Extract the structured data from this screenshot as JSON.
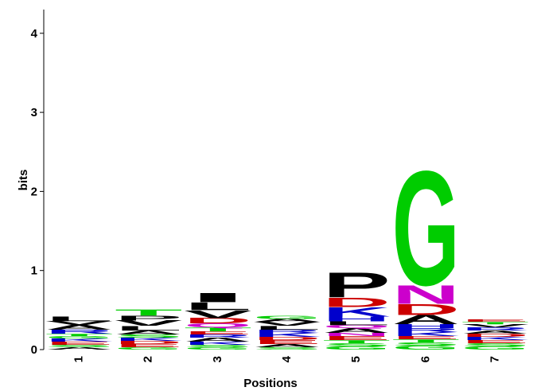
{
  "chart_data": {
    "type": "logo",
    "xlabel": "Positions",
    "ylabel": "bits",
    "categories": [
      "1",
      "2",
      "3",
      "4",
      "5",
      "6",
      "7"
    ],
    "ylim": [
      0,
      4.3
    ],
    "yticks": [
      0,
      1,
      2,
      3,
      4
    ],
    "stacks": [
      [
        {
          "letter": "A",
          "color": "#000000",
          "value": 0.03
        },
        {
          "letter": "S",
          "color": "#00cc00",
          "value": 0.03
        },
        {
          "letter": "E",
          "color": "#cc0000",
          "value": 0.04
        },
        {
          "letter": "K",
          "color": "#0000cc",
          "value": 0.04
        },
        {
          "letter": "G",
          "color": "#00cc00",
          "value": 0.03
        },
        {
          "letter": "T",
          "color": "#00cc00",
          "value": 0.03
        },
        {
          "letter": "R",
          "color": "#0000cc",
          "value": 0.05
        },
        {
          "letter": "A",
          "color": "#000000",
          "value": 0.06
        },
        {
          "letter": "V",
          "color": "#000000",
          "value": 0.05
        },
        {
          "letter": "L",
          "color": "#000000",
          "value": 0.06
        }
      ],
      [
        {
          "letter": "G",
          "color": "#00cc00",
          "value": 0.03
        },
        {
          "letter": "E",
          "color": "#cc0000",
          "value": 0.04
        },
        {
          "letter": "D",
          "color": "#cc0000",
          "value": 0.04
        },
        {
          "letter": "K",
          "color": "#0000cc",
          "value": 0.04
        },
        {
          "letter": "S",
          "color": "#00cc00",
          "value": 0.04
        },
        {
          "letter": "A",
          "color": "#000000",
          "value": 0.05
        },
        {
          "letter": "L",
          "color": "#000000",
          "value": 0.06
        },
        {
          "letter": "V",
          "color": "#000000",
          "value": 0.07
        },
        {
          "letter": "P",
          "color": "#000000",
          "value": 0.06
        },
        {
          "letter": "T",
          "color": "#00cc00",
          "value": 0.08
        }
      ],
      [
        {
          "letter": "G",
          "color": "#00cc00",
          "value": 0.03
        },
        {
          "letter": "S",
          "color": "#00cc00",
          "value": 0.03
        },
        {
          "letter": "K",
          "color": "#0000cc",
          "value": 0.04
        },
        {
          "letter": "A",
          "color": "#000000",
          "value": 0.05
        },
        {
          "letter": "R",
          "color": "#0000cc",
          "value": 0.04
        },
        {
          "letter": "E",
          "color": "#cc0000",
          "value": 0.04
        },
        {
          "letter": "T",
          "color": "#00cc00",
          "value": 0.05
        },
        {
          "letter": "Q",
          "color": "#cc00cc",
          "value": 0.05
        },
        {
          "letter": "D",
          "color": "#cc0000",
          "value": 0.07
        },
        {
          "letter": "V",
          "color": "#000000",
          "value": 0.1
        },
        {
          "letter": "L",
          "color": "#000000",
          "value": 0.1
        },
        {
          "letter": "I",
          "color": "#000000",
          "value": 0.12
        }
      ],
      [
        {
          "letter": "S",
          "color": "#00cc00",
          "value": 0.03
        },
        {
          "letter": "A",
          "color": "#000000",
          "value": 0.04
        },
        {
          "letter": "E",
          "color": "#cc0000",
          "value": 0.05
        },
        {
          "letter": "D",
          "color": "#cc0000",
          "value": 0.04
        },
        {
          "letter": "K",
          "color": "#0000cc",
          "value": 0.05
        },
        {
          "letter": "R",
          "color": "#0000cc",
          "value": 0.04
        },
        {
          "letter": "L",
          "color": "#000000",
          "value": 0.05
        },
        {
          "letter": "V",
          "color": "#000000",
          "value": 0.05
        },
        {
          "letter": "A",
          "color": "#000000",
          "value": 0.04
        },
        {
          "letter": "G",
          "color": "#00cc00",
          "value": 0.04
        }
      ],
      [
        {
          "letter": "G",
          "color": "#00cc00",
          "value": 0.04
        },
        {
          "letter": "S",
          "color": "#00cc00",
          "value": 0.04
        },
        {
          "letter": "T",
          "color": "#00cc00",
          "value": 0.04
        },
        {
          "letter": "E",
          "color": "#cc0000",
          "value": 0.05
        },
        {
          "letter": "N",
          "color": "#cc00cc",
          "value": 0.04
        },
        {
          "letter": "A",
          "color": "#000000",
          "value": 0.06
        },
        {
          "letter": "Q",
          "color": "#cc00cc",
          "value": 0.04
        },
        {
          "letter": "L",
          "color": "#000000",
          "value": 0.05
        },
        {
          "letter": "H",
          "color": "#0000cc",
          "value": 0.06
        },
        {
          "letter": "K",
          "color": "#0000cc",
          "value": 0.12
        },
        {
          "letter": "D",
          "color": "#cc0000",
          "value": 0.12
        },
        {
          "letter": "P",
          "color": "#000000",
          "value": 0.32
        }
      ],
      [
        {
          "letter": "G",
          "color": "#00cc00",
          "value": 0.05
        },
        {
          "letter": "S",
          "color": "#00cc00",
          "value": 0.04
        },
        {
          "letter": "T",
          "color": "#00cc00",
          "value": 0.04
        },
        {
          "letter": "E",
          "color": "#cc0000",
          "value": 0.04
        },
        {
          "letter": "K",
          "color": "#0000cc",
          "value": 0.05
        },
        {
          "letter": "R",
          "color": "#0000cc",
          "value": 0.05
        },
        {
          "letter": "H",
          "color": "#0000cc",
          "value": 0.05
        },
        {
          "letter": "A",
          "color": "#000000",
          "value": 0.12
        },
        {
          "letter": "D",
          "color": "#cc0000",
          "value": 0.14
        },
        {
          "letter": "N",
          "color": "#cc00cc",
          "value": 0.24
        },
        {
          "letter": "G",
          "color": "#00cc00",
          "value": 1.49
        }
      ],
      [
        {
          "letter": "G",
          "color": "#00cc00",
          "value": 0.04
        },
        {
          "letter": "S",
          "color": "#00cc00",
          "value": 0.04
        },
        {
          "letter": "E",
          "color": "#cc0000",
          "value": 0.04
        },
        {
          "letter": "K",
          "color": "#0000cc",
          "value": 0.04
        },
        {
          "letter": "D",
          "color": "#cc0000",
          "value": 0.04
        },
        {
          "letter": "A",
          "color": "#000000",
          "value": 0.04
        },
        {
          "letter": "R",
          "color": "#0000cc",
          "value": 0.04
        },
        {
          "letter": "V",
          "color": "#000000",
          "value": 0.04
        },
        {
          "letter": "T",
          "color": "#00cc00",
          "value": 0.03
        },
        {
          "letter": "E",
          "color": "#cc0000",
          "value": 0.03
        }
      ]
    ]
  }
}
